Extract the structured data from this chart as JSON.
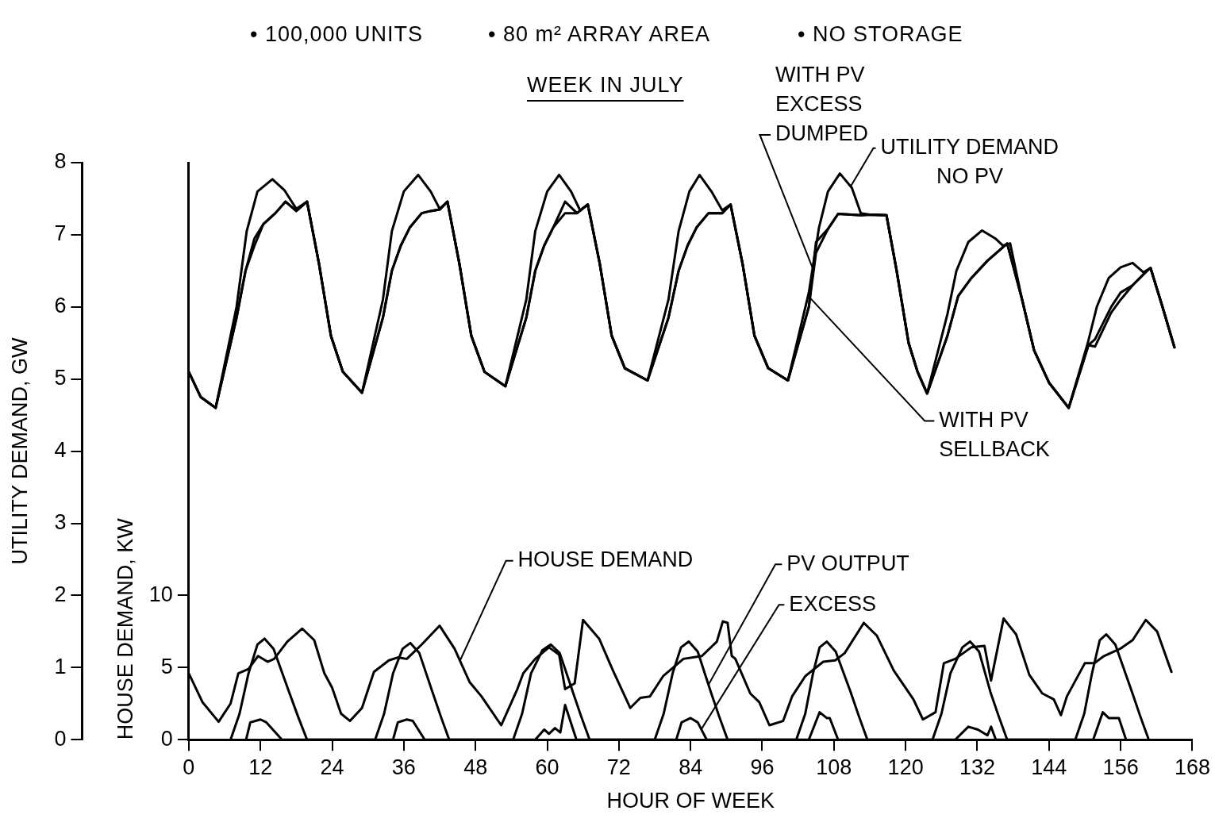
{
  "chart_data": {
    "type": "line",
    "subtitle": "WEEK IN JULY",
    "xlabel": "HOUR OF WEEK",
    "ylabel": "UTILITY DEMAND, GW",
    "y2label": "HOUSE DEMAND, KW",
    "annotations": [
      "• 100,000 UNITS",
      "• 80 m² ARRAY AREA",
      "• NO STORAGE"
    ],
    "xlim": [
      0,
      168
    ],
    "xticks": [
      0,
      12,
      24,
      36,
      48,
      60,
      72,
      84,
      96,
      108,
      120,
      132,
      144,
      156,
      168
    ],
    "ylim": [
      0,
      8
    ],
    "yticks": [
      0,
      1,
      2,
      3,
      4,
      5,
      6,
      7,
      8
    ],
    "y2lim": [
      0,
      40
    ],
    "y2ticks": [
      0,
      5,
      10
    ],
    "marker": "none",
    "series": [
      {
        "name": "UTILITY DEMAND NO PV",
        "color": "#000000",
        "x": [
          0,
          2,
          4.5,
          8,
          9.7,
          11.5,
          14,
          16,
          18,
          19.8,
          21.8,
          23.8,
          25.8,
          29,
          32.5,
          34,
          36,
          38.4,
          40.5,
          42,
          43.3,
          45.3,
          47.3,
          49.5,
          53,
          56.5,
          58,
          60,
          62,
          64,
          65.5,
          66.8,
          68.8,
          70.8,
          73,
          76.8,
          80.3,
          82,
          83.8,
          85.5,
          87.5,
          89.3,
          90.7,
          92.7,
          94.7,
          97,
          100.3,
          103.8,
          105.5,
          107,
          109,
          111,
          112.5,
          114,
          116.8,
          118.5,
          120.5,
          122,
          123.6,
          127,
          128.5,
          130.5,
          132.8,
          135,
          136.3,
          137.5,
          139.5,
          141.5,
          144,
          147.3,
          150.5,
          152,
          154,
          156,
          158,
          159.8,
          161,
          163,
          165
        ],
        "values": [
          5.1,
          4.75,
          4.6,
          6.0,
          7.05,
          7.6,
          7.77,
          7.62,
          7.36,
          7.46,
          6.6,
          5.6,
          5.1,
          4.81,
          6.1,
          7.05,
          7.6,
          7.83,
          7.6,
          7.36,
          7.46,
          6.6,
          5.6,
          5.1,
          4.9,
          6.1,
          7.05,
          7.6,
          7.83,
          7.6,
          7.34,
          7.42,
          6.6,
          5.6,
          5.15,
          4.98,
          6.1,
          7.05,
          7.6,
          7.83,
          7.6,
          7.34,
          7.42,
          6.6,
          5.6,
          5.15,
          4.98,
          6.2,
          7.1,
          7.6,
          7.85,
          7.65,
          7.3,
          7.28,
          7.27,
          6.5,
          5.5,
          5.1,
          4.8,
          5.9,
          6.5,
          6.9,
          7.06,
          6.95,
          6.85,
          6.88,
          6.1,
          5.4,
          4.95,
          4.6,
          5.5,
          6.0,
          6.4,
          6.55,
          6.61,
          6.48,
          6.54,
          6.0,
          5.44
        ]
      },
      {
        "name": "WITH PV EXCESS DUMPED",
        "color": "#000000",
        "x": [
          0,
          2,
          4.5,
          8,
          9.5,
          11,
          12.5,
          14.5,
          16.2,
          18,
          19.8,
          21.8,
          23.8,
          25.8,
          29,
          32.5,
          34,
          35.5,
          37,
          39,
          40.5,
          42,
          43.3,
          45.3,
          47.3,
          49.5,
          53,
          56.5,
          58,
          59.5,
          61,
          63,
          65,
          66.8,
          68.8,
          70.8,
          73,
          76.8,
          80.3,
          82,
          83.5,
          85,
          87,
          89.3,
          90.7,
          92.7,
          94.7,
          97,
          100.3,
          103.8,
          105,
          107,
          108.7,
          112.5,
          114,
          116.8,
          118.5,
          120.5,
          122,
          123.6,
          127,
          128.8,
          131,
          133.7,
          137,
          139.5,
          141.5,
          144,
          147.3,
          150.6,
          151.7,
          154.4,
          156,
          158,
          160.4,
          161,
          163,
          165
        ],
        "values": [
          5.1,
          4.75,
          4.6,
          5.85,
          6.5,
          6.95,
          7.15,
          7.3,
          7.46,
          7.33,
          7.46,
          6.6,
          5.6,
          5.1,
          4.81,
          5.85,
          6.5,
          6.85,
          7.1,
          7.3,
          7.33,
          7.35,
          7.46,
          6.6,
          5.6,
          5.1,
          4.9,
          5.85,
          6.5,
          6.85,
          7.1,
          7.46,
          7.3,
          7.42,
          6.6,
          5.6,
          5.15,
          4.98,
          5.85,
          6.5,
          6.85,
          7.1,
          7.3,
          7.3,
          7.42,
          6.6,
          5.6,
          5.15,
          4.98,
          6.0,
          6.9,
          7.08,
          7.29,
          7.27,
          7.28,
          7.27,
          6.5,
          5.5,
          5.1,
          4.8,
          5.6,
          6.15,
          6.4,
          6.64,
          6.88,
          6.1,
          5.4,
          4.95,
          4.6,
          5.47,
          5.55,
          6.0,
          6.2,
          6.3,
          6.5,
          6.54,
          6.0,
          5.44
        ]
      },
      {
        "name": "WITH PV SELLBACK",
        "color": "#000000",
        "x": [
          0,
          2,
          4.5,
          8,
          9.5,
          11,
          12.5,
          14.5,
          16.2,
          18,
          19.8,
          21.8,
          23.8,
          25.8,
          29,
          32.5,
          34,
          35.5,
          37,
          39,
          40.5,
          42,
          43.3,
          45.3,
          47.3,
          49.5,
          53,
          56.5,
          58,
          59.5,
          61,
          63,
          65,
          66.8,
          68.8,
          70.8,
          73,
          76.8,
          80.3,
          82,
          83.5,
          85,
          87,
          89.3,
          90.7,
          92.7,
          94.7,
          97,
          100.3,
          103.8,
          105,
          107,
          108.7,
          112.5,
          114,
          116.8,
          118.5,
          120.5,
          122,
          123.6,
          127,
          128.8,
          131,
          133.7,
          137,
          139.5,
          141.5,
          144,
          147.3,
          150.6,
          151.7,
          154.4,
          156,
          158,
          160.4,
          161,
          163,
          165
        ],
        "values": [
          5.1,
          4.75,
          4.6,
          5.85,
          6.5,
          6.85,
          7.15,
          7.3,
          7.46,
          7.33,
          7.46,
          6.6,
          5.6,
          5.1,
          4.81,
          5.85,
          6.5,
          6.85,
          7.1,
          7.3,
          7.33,
          7.35,
          7.46,
          6.6,
          5.6,
          5.1,
          4.9,
          5.85,
          6.5,
          6.85,
          7.1,
          7.3,
          7.3,
          7.42,
          6.6,
          5.6,
          5.15,
          4.98,
          5.85,
          6.5,
          6.85,
          7.1,
          7.3,
          7.3,
          7.42,
          6.6,
          5.6,
          5.15,
          4.98,
          6.0,
          6.75,
          7.08,
          7.29,
          7.27,
          7.28,
          7.27,
          6.5,
          5.5,
          5.1,
          4.8,
          5.6,
          6.15,
          6.4,
          6.64,
          6.88,
          6.1,
          5.4,
          4.95,
          4.6,
          5.47,
          5.45,
          5.92,
          6.1,
          6.3,
          6.5,
          6.54,
          6.0,
          5.44
        ]
      },
      {
        "name": "HOUSE DEMAND",
        "color": "#000000",
        "axis": "y2",
        "x": [
          0,
          2.3,
          5,
          7,
          8.3,
          10,
          11.6,
          13.2,
          14.3,
          16.5,
          19,
          21,
          22.7,
          24,
          25.5,
          27,
          29,
          31,
          33.5,
          35,
          36.5,
          39,
          42,
          44.5,
          47,
          49,
          52.3,
          55,
          56,
          58,
          60.3,
          62,
          63,
          64.6,
          66,
          68.7,
          71,
          73.9,
          75.6,
          77.2,
          79.4,
          82.8,
          85.9,
          88.4,
          89.4,
          90.2,
          90.9,
          91.5,
          94,
          95.5,
          97.2,
          99.5,
          101,
          103.2,
          106.2,
          108.2,
          109.8,
          113,
          115.2,
          118,
          121.3,
          122.9,
          125,
          126.4,
          128.3,
          131,
          133.2,
          134.3,
          136.4,
          138.5,
          140.7,
          142.9,
          144.8,
          146,
          147,
          150,
          151.6,
          153.2,
          155.9,
          158,
          160.2,
          162.1,
          164.5
        ],
        "values": [
          4.6,
          2.6,
          1.24,
          2.5,
          4.6,
          4.9,
          5.8,
          5.4,
          5.6,
          6.8,
          7.7,
          6.9,
          4.6,
          3.6,
          1.8,
          1.3,
          2.2,
          4.7,
          5.5,
          5.7,
          5.6,
          6.6,
          7.9,
          6.3,
          4.0,
          3.0,
          1.0,
          3.5,
          4.6,
          5.6,
          6.4,
          5.9,
          3.5,
          3.9,
          8.3,
          7.0,
          4.8,
          2.2,
          2.9,
          3.0,
          4.4,
          5.6,
          5.8,
          6.8,
          8.2,
          8.1,
          5.8,
          5.6,
          3.2,
          2.6,
          1.0,
          1.3,
          3.0,
          4.4,
          5.4,
          5.5,
          6.0,
          8.1,
          7.2,
          4.8,
          2.8,
          1.4,
          1.9,
          5.3,
          5.6,
          6.4,
          6.5,
          4.1,
          8.4,
          7.3,
          4.5,
          3.2,
          2.8,
          1.7,
          3.0,
          5.3,
          5.3,
          5.8,
          6.3,
          6.9,
          8.3,
          7.5,
          4.7
        ]
      },
      {
        "name": "PV OUTPUT",
        "color": "#000000",
        "axis": "y2",
        "x": [
          7,
          8.5,
          10,
          11.5,
          12.7,
          14.2,
          16.8,
          18.3,
          19.8,
          31.2,
          32.7,
          34.2,
          35.8,
          37.1,
          38.6,
          40.8,
          42.2,
          43.6,
          54.3,
          55.8,
          57.3,
          59.2,
          60.6,
          62.1,
          64.3,
          65.7,
          67.1,
          78,
          79.5,
          81,
          82.4,
          83.7,
          85.2,
          87.4,
          88.8,
          90.2,
          101.7,
          103.2,
          104.5,
          105.6,
          106.8,
          108.3,
          110.8,
          112.2,
          113.6,
          124.5,
          126,
          127.5,
          129.5,
          130.8,
          132.3,
          134.2,
          135.6,
          137,
          148.4,
          149.9,
          151.2,
          152.5,
          153.6,
          155.1,
          157.9,
          159.3,
          160.7
        ],
        "values": [
          0,
          1.8,
          4.6,
          6.6,
          7.0,
          6.3,
          3.3,
          1.6,
          0,
          0,
          1.8,
          4.6,
          6.3,
          6.7,
          6.0,
          3.3,
          1.6,
          0,
          0,
          1.8,
          4.6,
          6.2,
          6.6,
          6.0,
          3.3,
          1.6,
          0,
          0,
          1.8,
          4.6,
          6.4,
          6.8,
          6.1,
          3.3,
          1.6,
          0,
          0,
          1.8,
          4.6,
          6.4,
          6.8,
          6.1,
          3.3,
          1.6,
          0,
          0,
          1.8,
          4.6,
          6.4,
          6.8,
          6.1,
          3.3,
          1.6,
          0,
          0,
          1.8,
          4.6,
          6.9,
          7.3,
          6.6,
          3.3,
          1.6,
          0
        ]
      },
      {
        "name": "EXCESS",
        "color": "#000000",
        "axis": "y2",
        "x": [
          9.6,
          10.3,
          12,
          13,
          15.6,
          34.2,
          35,
          36.5,
          37.5,
          39.5,
          58,
          59.5,
          60.3,
          61.3,
          62.2,
          63,
          64.9,
          81.6,
          82.5,
          84,
          85.2,
          86.7,
          103.8,
          105.6,
          106.8,
          107.3,
          108.7,
          128.3,
          130.5,
          132.1,
          133.7,
          134.3,
          135.1,
          151.4,
          153,
          154,
          155.7,
          156.9
        ],
        "values": [
          0,
          1.2,
          1.4,
          1.2,
          0,
          0,
          1.2,
          1.4,
          1.3,
          0,
          0,
          0.7,
          0.4,
          0.8,
          0.5,
          2.4,
          0,
          0,
          1.2,
          1.5,
          1.2,
          0,
          0,
          1.9,
          1.5,
          1.5,
          0,
          0,
          0.9,
          0.7,
          0.3,
          0.9,
          0,
          0,
          1.9,
          1.5,
          1.5,
          0
        ]
      }
    ]
  }
}
